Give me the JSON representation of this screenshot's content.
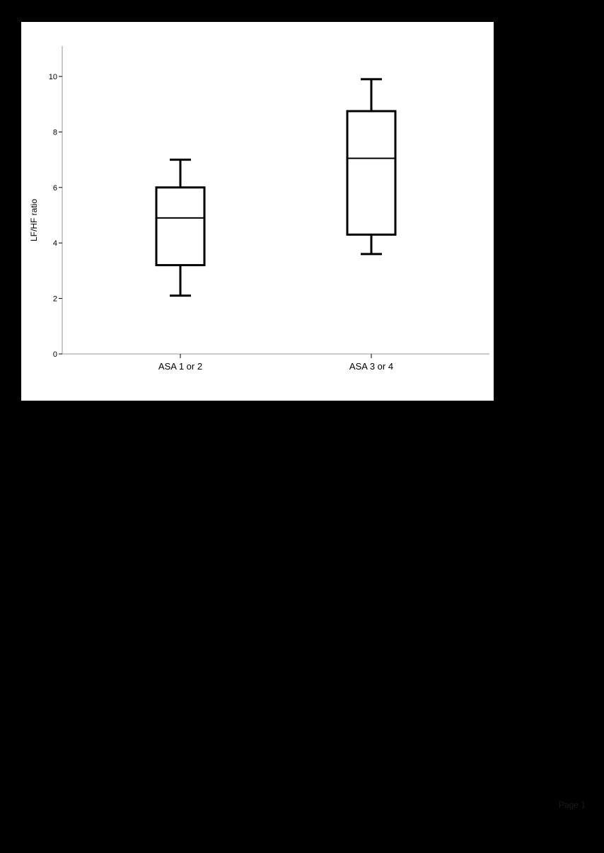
{
  "page": {
    "page_label": "Page 1",
    "background_color": "#000000",
    "panel_color": "#ffffff"
  },
  "chart_data": {
    "type": "boxplot",
    "title": "",
    "xlabel": "",
    "ylabel": "LF/HF ratio",
    "ylim": [
      0,
      11
    ],
    "yticks": [
      0,
      2,
      4,
      6,
      8,
      10
    ],
    "categories": [
      "ASA 1 or 2",
      "ASA 3 or 4"
    ],
    "boxes": [
      {
        "category": "ASA 1 or 2",
        "min": 2.1,
        "q1": 3.2,
        "median": 4.9,
        "q3": 6.0,
        "max": 7.0
      },
      {
        "category": "ASA 3 or 4",
        "min": 3.6,
        "q1": 4.3,
        "median": 7.05,
        "q3": 8.75,
        "max": 9.9
      }
    ],
    "grid": false,
    "legend": "none",
    "colors": {
      "box_stroke": "#000000",
      "axis": "#999999",
      "text": "#000000"
    }
  }
}
